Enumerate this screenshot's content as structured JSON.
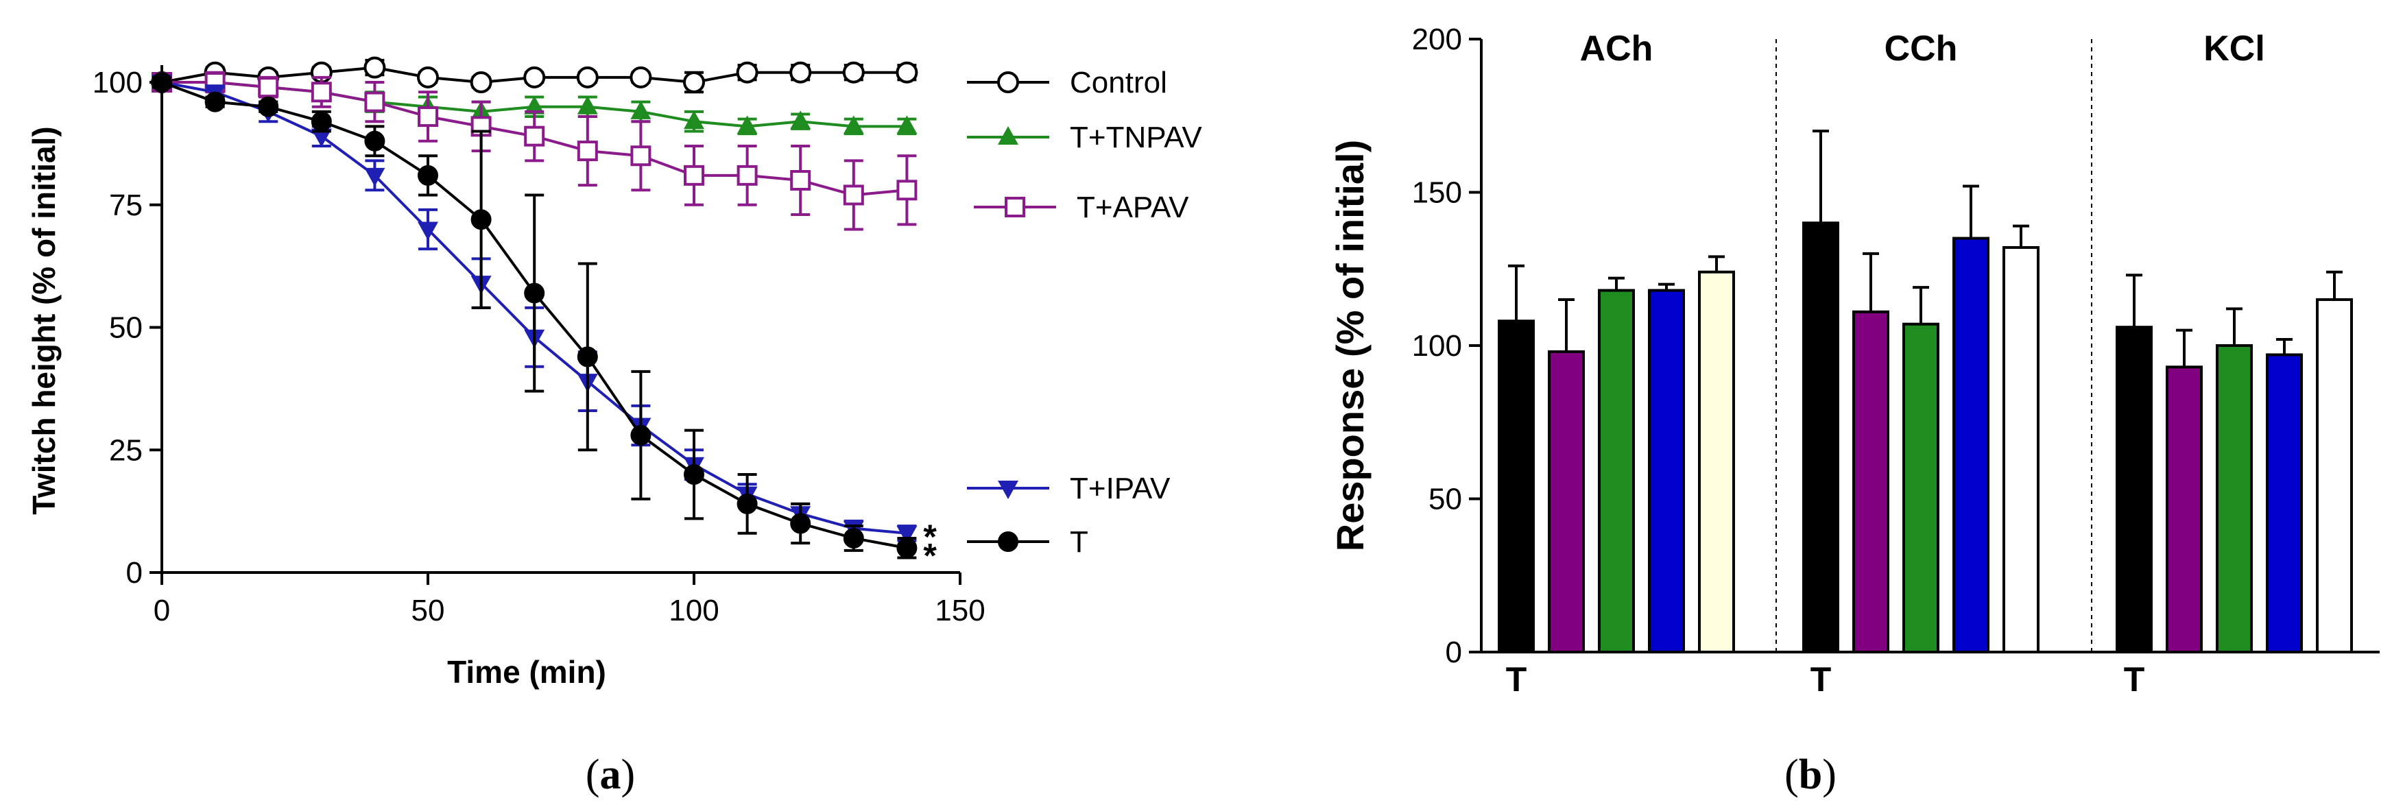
{
  "panels": {
    "a": {
      "label_prefix": "(",
      "label_letter": "a",
      "label_suffix": ")"
    },
    "b": {
      "label_prefix": "(",
      "label_letter": "b",
      "label_suffix": ")"
    }
  },
  "chart_data": [
    {
      "type": "line",
      "panel": "a",
      "xlabel": "Time (min)",
      "ylabel": "Twitch height (% of initial)",
      "xlim": [
        0,
        150
      ],
      "ylim": [
        0,
        100
      ],
      "xticks": [
        "0",
        "50",
        "100",
        "150"
      ],
      "yticks": [
        "0",
        "25",
        "50",
        "75",
        "100"
      ],
      "series": [
        {
          "name": "Control",
          "color": "#000000",
          "marker": "circle-open",
          "x": [
            0,
            10,
            20,
            30,
            40,
            50,
            60,
            70,
            80,
            90,
            100,
            110,
            120,
            130,
            140
          ],
          "y": [
            100,
            102,
            101,
            102,
            103,
            101,
            100,
            101,
            101,
            101,
            100,
            102,
            102,
            102,
            102
          ],
          "err": [
            1,
            1,
            1,
            1,
            1.5,
            1,
            1,
            1,
            1,
            1,
            2,
            1.5,
            1.5,
            1.5,
            1.5
          ],
          "annotation": ""
        },
        {
          "name": "T+TNPAV",
          "color": "#1e8c1e",
          "marker": "triangle-up",
          "x": [
            0,
            10,
            20,
            30,
            40,
            50,
            60,
            70,
            80,
            90,
            100,
            110,
            120,
            130,
            140
          ],
          "y": [
            100,
            100,
            99,
            98,
            96,
            95,
            94,
            95,
            95,
            94,
            92,
            91,
            92,
            91,
            91
          ],
          "err": [
            1,
            1,
            1,
            1,
            2,
            2,
            2,
            2,
            2,
            2,
            2,
            1.5,
            1.5,
            1.5,
            1.5
          ],
          "annotation": ""
        },
        {
          "name": "T+APAV",
          "color": "#8b1a8b",
          "marker": "square-open",
          "x": [
            0,
            10,
            20,
            30,
            40,
            50,
            60,
            70,
            80,
            90,
            100,
            110,
            120,
            130,
            140
          ],
          "y": [
            100,
            100,
            99,
            98,
            96,
            93,
            91,
            89,
            86,
            85,
            81,
            81,
            80,
            77,
            78
          ],
          "err": [
            1,
            2,
            2,
            3,
            4,
            5,
            5,
            5,
            7,
            7,
            6,
            6,
            7,
            7,
            7
          ],
          "annotation": ""
        },
        {
          "name": "T+IPAV",
          "color": "#1f1fb4",
          "marker": "triangle-down",
          "x": [
            0,
            10,
            20,
            30,
            40,
            50,
            60,
            70,
            80,
            90,
            100,
            110,
            120,
            130,
            140
          ],
          "y": [
            100,
            98,
            94,
            89,
            81,
            70,
            59,
            48,
            39,
            30,
            22,
            16,
            12,
            9,
            8
          ],
          "err": [
            1,
            1,
            2,
            2,
            3,
            4,
            5,
            6,
            6,
            4,
            3,
            2,
            2,
            1.5,
            1.5
          ],
          "annotation": "*"
        },
        {
          "name": "T",
          "color": "#000000",
          "marker": "circle-filled",
          "x": [
            0,
            10,
            20,
            30,
            40,
            50,
            60,
            70,
            80,
            90,
            100,
            110,
            120,
            130,
            140
          ],
          "y": [
            100,
            96,
            95,
            92,
            88,
            81,
            72,
            57,
            44,
            28,
            20,
            14,
            10,
            7,
            5
          ],
          "err": [
            1,
            1,
            1,
            2,
            3,
            4,
            18,
            20,
            19,
            13,
            9,
            6,
            4,
            2.5,
            2
          ],
          "annotation": "*"
        }
      ]
    },
    {
      "type": "bar",
      "panel": "b",
      "ylabel": "Response (% of initial)",
      "ylim": [
        0,
        200
      ],
      "yticks": [
        "0",
        "50",
        "100",
        "150",
        "200"
      ],
      "groups": [
        {
          "name": "ACh",
          "first_bar_label": "T",
          "bars": [
            {
              "value": 108,
              "err": 18,
              "color": "#000000"
            },
            {
              "value": 98,
              "err": 17,
              "color": "#800080"
            },
            {
              "value": 118,
              "err": 4,
              "color": "#1e8c1e"
            },
            {
              "value": 118,
              "err": 2,
              "color": "#0000cd"
            },
            {
              "value": 124,
              "err": 5,
              "color": "#ffffe0"
            }
          ]
        },
        {
          "name": "CCh",
          "first_bar_label": "T",
          "bars": [
            {
              "value": 140,
              "err": 30,
              "color": "#000000"
            },
            {
              "value": 111,
              "err": 19,
              "color": "#800080"
            },
            {
              "value": 107,
              "err": 12,
              "color": "#1e8c1e"
            },
            {
              "value": 135,
              "err": 17,
              "color": "#0000cd"
            },
            {
              "value": 132,
              "err": 7,
              "color": "#ffffff"
            }
          ]
        },
        {
          "name": "KCl",
          "first_bar_label": "T",
          "bars": [
            {
              "value": 106,
              "err": 17,
              "color": "#000000"
            },
            {
              "value": 93,
              "err": 12,
              "color": "#800080"
            },
            {
              "value": 100,
              "err": 12,
              "color": "#1e8c1e"
            },
            {
              "value": 97,
              "err": 5,
              "color": "#0000cd"
            },
            {
              "value": 115,
              "err": 9,
              "color": "#ffffff"
            }
          ]
        }
      ]
    }
  ]
}
